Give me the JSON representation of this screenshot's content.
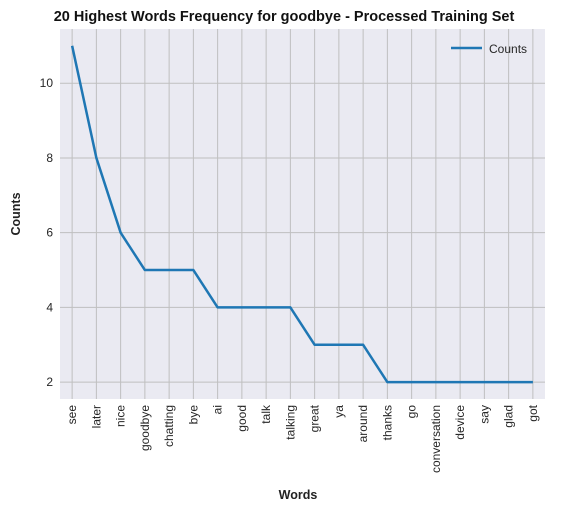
{
  "chart_data": {
    "type": "line",
    "title": "20 Highest Words Frequency for goodbye - Processed Training Set",
    "xlabel": "Words",
    "ylabel": "Counts",
    "categories": [
      "see",
      "later",
      "nice",
      "goodbye",
      "chatting",
      "bye",
      "ai",
      "good",
      "talk",
      "talking",
      "great",
      "ya",
      "around",
      "thanks",
      "go",
      "conversation",
      "device",
      "say",
      "glad",
      "got"
    ],
    "series": [
      {
        "name": "Counts",
        "values": [
          11,
          8,
          6,
          5,
          5,
          5,
          4,
          4,
          4,
          4,
          3,
          3,
          3,
          2,
          2,
          2,
          2,
          2,
          2,
          2
        ]
      }
    ],
    "ylim": [
      1.55,
      11.45
    ],
    "yticks": [
      2,
      4,
      6,
      8,
      10
    ],
    "grid": true,
    "legend": "top-right"
  },
  "colors": {
    "line": "#1f77b4",
    "plot_background": "#eaeaf2",
    "grid": "#bfbfbf"
  }
}
